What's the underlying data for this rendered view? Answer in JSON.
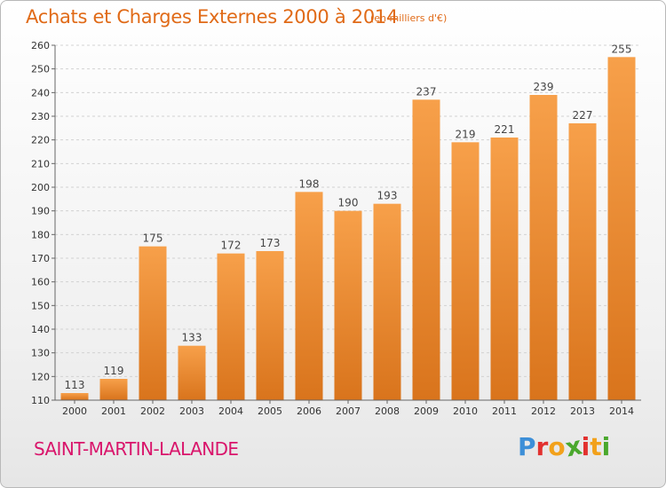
{
  "header": {
    "title": "Achats et Charges Externes 2000 à 2014",
    "subtitle": "(en milliers d'€)"
  },
  "footer": {
    "commune": "SAINT-MARTIN-LALANDE",
    "logo_letters": [
      "P",
      "r",
      "o",
      "x",
      "i",
      "t",
      "i"
    ],
    "logo_colors": [
      "#3d8fd8",
      "#e2312f",
      "#f2a11b",
      "#4aa82d",
      "#e2312f",
      "#f2a11b",
      "#4aa82d"
    ]
  },
  "chart_data": {
    "type": "bar",
    "title": "Achats et Charges Externes 2000 à 2014",
    "subtitle": "(en milliers d'€)",
    "categories": [
      "2000",
      "2001",
      "2002",
      "2003",
      "2004",
      "2005",
      "2006",
      "2007",
      "2008",
      "2009",
      "2010",
      "2011",
      "2012",
      "2013",
      "2014"
    ],
    "values": [
      113,
      119,
      175,
      133,
      172,
      173,
      198,
      190,
      193,
      237,
      219,
      221,
      239,
      227,
      255
    ],
    "ylim": [
      110,
      260
    ],
    "yticks": [
      110,
      120,
      130,
      140,
      150,
      160,
      170,
      180,
      190,
      200,
      210,
      220,
      230,
      240,
      250,
      260
    ],
    "grid": true,
    "bar_color_top": "#f7a04a",
    "bar_color_bottom": "#d9741c"
  }
}
